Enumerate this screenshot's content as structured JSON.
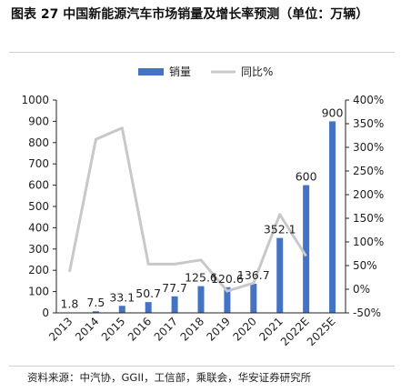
{
  "header": {
    "title": "图表 27 中国新能源汽车市场销量及增长率预测（单位：万辆）"
  },
  "footer": {
    "source": "资料来源：中汽协，GGII，工信部，乘联会，华安证券研究所"
  },
  "colors": {
    "bar": "#4472C4",
    "line": "#C8C8C8"
  },
  "chart_data": {
    "type": "bar",
    "title": "",
    "categories": [
      "2013",
      "2014",
      "2015",
      "2016",
      "2017",
      "2018",
      "2019",
      "2020",
      "2021",
      "2022E",
      "2025E"
    ],
    "series": [
      {
        "name": "销量",
        "type": "bar",
        "axis": "left",
        "values": [
          1.8,
          7.5,
          33.1,
          50.7,
          77.7,
          125.6,
          120.6,
          136.7,
          352.1,
          600,
          900
        ],
        "labels": [
          "1.8",
          "7.5",
          "33.1",
          "50.7",
          "77.7",
          "125.6",
          "120.6",
          "136.7",
          "352.1",
          "600",
          "900"
        ]
      },
      {
        "name": "同比%",
        "type": "line",
        "axis": "right",
        "values": [
          37,
          317,
          341,
          53,
          53,
          62,
          -4,
          13,
          158,
          70,
          null
        ]
      }
    ],
    "ylim_left": [
      0,
      1000
    ],
    "yticks_left": [
      "0",
      "100",
      "200",
      "300",
      "400",
      "500",
      "600",
      "700",
      "800",
      "900",
      "1000"
    ],
    "ylim_right": [
      -50,
      400
    ],
    "yticks_right": [
      "-50%",
      "0%",
      "50%",
      "100%",
      "150%",
      "200%",
      "250%",
      "300%",
      "350%",
      "400%"
    ],
    "legend_position": "top",
    "grid": false
  }
}
